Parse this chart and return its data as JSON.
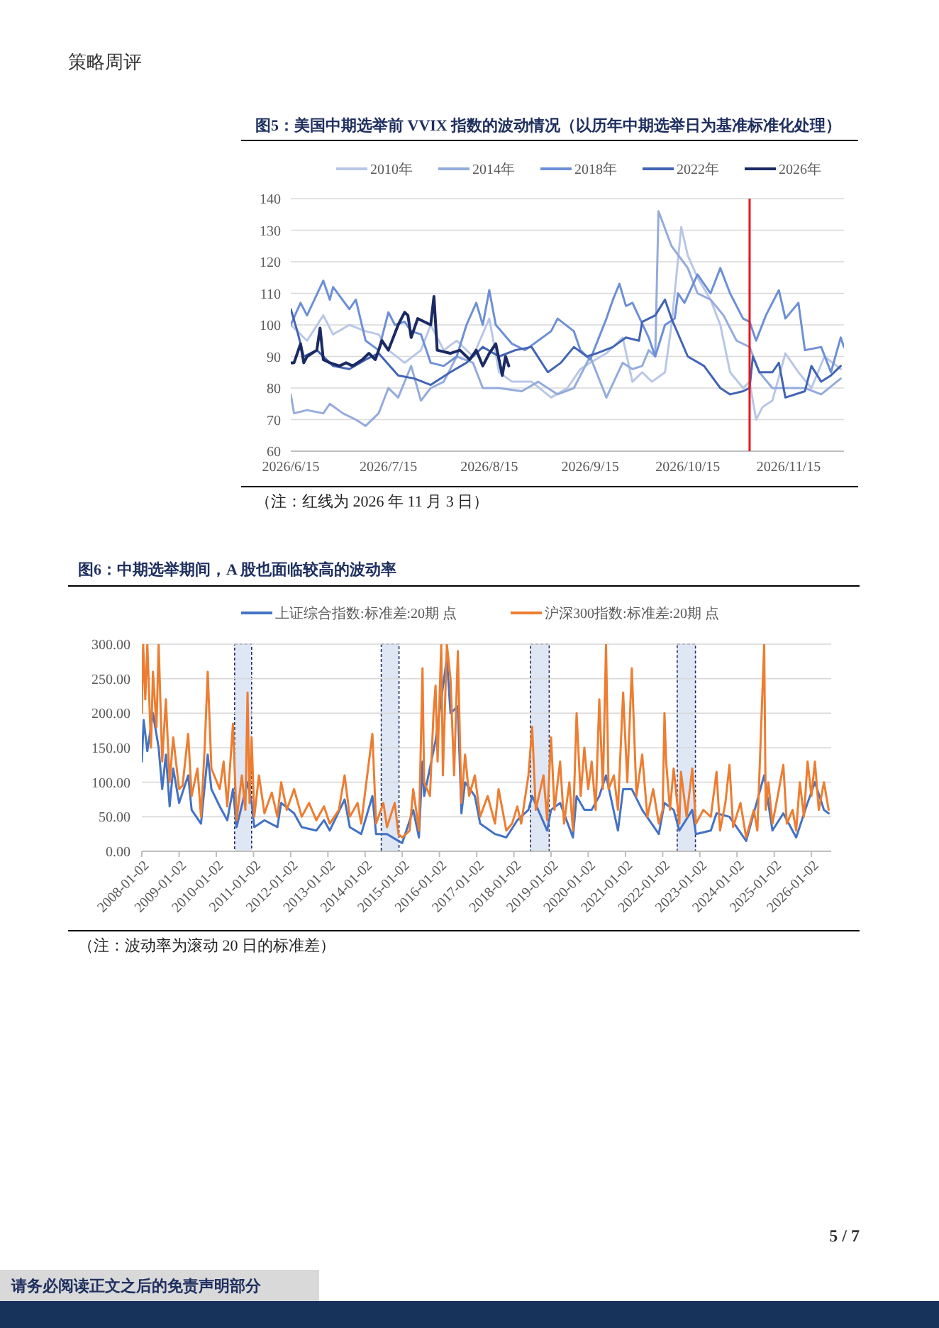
{
  "chart_data": [
    {
      "type": "line",
      "title": "图5：美国中期选举前 VVIX 指数的波动情况（以历年中期选举日为基准标准化处理）",
      "legend": "top",
      "grid": "y",
      "xlim": [
        "2026-06-15",
        "2026-12-02"
      ],
      "ylim": [
        60,
        140
      ],
      "xticks": [
        {
          "value": "2026-06-15",
          "label": "2026/6/15"
        },
        {
          "value": "2026-07-15",
          "label": "2026/7/15"
        },
        {
          "value": "2026-08-15",
          "label": "2026/8/15"
        },
        {
          "value": "2026-09-15",
          "label": "2026/9/15"
        },
        {
          "value": "2026-10-15",
          "label": "2026/10/15"
        },
        {
          "value": "2026-11-15",
          "label": "2026/11/15"
        }
      ],
      "yticks": [
        60,
        70,
        80,
        90,
        100,
        110,
        120,
        130,
        140
      ],
      "ref_lines": [
        {
          "axis": "x",
          "value": "2026-11-03",
          "color": "#e8141b"
        }
      ],
      "annotations": [
        "（注：红线为 2026 年 11 月 3 日）"
      ],
      "series": [
        {
          "name": "2010年",
          "color": "#b9c7e6",
          "x": [
            "2026-06-15",
            "2026-06-20",
            "2026-06-25",
            "2026-06-28",
            "2026-07-03",
            "2026-07-08",
            "2026-07-12",
            "2026-07-15",
            "2026-07-20",
            "2026-07-25",
            "2026-07-28",
            "2026-08-01",
            "2026-08-05",
            "2026-08-10",
            "2026-08-15",
            "2026-08-18",
            "2026-08-22",
            "2026-08-28",
            "2026-09-03",
            "2026-09-08",
            "2026-09-12",
            "2026-09-15",
            "2026-09-20",
            "2026-09-25",
            "2026-09-28",
            "2026-10-01",
            "2026-10-04",
            "2026-10-08",
            "2026-10-10",
            "2026-10-13",
            "2026-10-15",
            "2026-10-18",
            "2026-10-22",
            "2026-10-25",
            "2026-10-28",
            "2026-11-01",
            "2026-11-03",
            "2026-11-05",
            "2026-11-07",
            "2026-11-10",
            "2026-11-14",
            "2026-11-18",
            "2026-11-22",
            "2026-11-26",
            "2026-12-01"
          ],
          "values": [
            100,
            95,
            103,
            97,
            100,
            98,
            97,
            92,
            88,
            92,
            100,
            92,
            95,
            90,
            102,
            85,
            82,
            82,
            77,
            80,
            86,
            88,
            91,
            96,
            82,
            85,
            82,
            85,
            100,
            131,
            122,
            115,
            108,
            100,
            85,
            80,
            82,
            70,
            74,
            76,
            91,
            85,
            80,
            90,
            86
          ]
        },
        {
          "name": "2014年",
          "color": "#94abdc",
          "x": [
            "2026-06-15",
            "2026-06-16",
            "2026-06-20",
            "2026-06-25",
            "2026-06-27",
            "2026-07-01",
            "2026-07-05",
            "2026-07-08",
            "2026-07-12",
            "2026-07-15",
            "2026-07-18",
            "2026-07-22",
            "2026-07-25",
            "2026-07-28",
            "2026-08-01",
            "2026-08-05",
            "2026-08-10",
            "2026-08-13",
            "2026-08-18",
            "2026-08-25",
            "2026-08-30",
            "2026-09-05",
            "2026-09-10",
            "2026-09-15",
            "2026-09-20",
            "2026-09-25",
            "2026-09-28",
            "2026-10-01",
            "2026-10-03",
            "2026-10-05",
            "2026-10-06",
            "2026-10-10",
            "2026-10-15",
            "2026-10-18",
            "2026-10-22",
            "2026-10-26",
            "2026-10-30",
            "2026-11-03",
            "2026-11-06",
            "2026-11-10",
            "2026-11-20",
            "2026-11-25",
            "2026-12-01"
          ],
          "values": [
            78,
            72,
            73,
            72,
            75,
            72,
            70,
            68,
            72,
            80,
            77,
            87,
            76,
            80,
            82,
            90,
            88,
            80,
            80,
            79,
            82,
            78,
            80,
            90,
            77,
            88,
            86,
            87,
            92,
            90,
            136,
            125,
            118,
            110,
            108,
            103,
            95,
            93,
            85,
            80,
            80,
            78,
            83
          ]
        },
        {
          "name": "2018年",
          "color": "#6d8fd6",
          "x": [
            "2026-06-15",
            "2026-06-18",
            "2026-06-20",
            "2026-06-25",
            "2026-06-27",
            "2026-06-28",
            "2026-07-03",
            "2026-07-05",
            "2026-07-08",
            "2026-07-12",
            "2026-07-15",
            "2026-07-17",
            "2026-07-20",
            "2026-07-22",
            "2026-07-25",
            "2026-07-28",
            "2026-08-01",
            "2026-08-05",
            "2026-08-08",
            "2026-08-11",
            "2026-08-13",
            "2026-08-15",
            "2026-08-17",
            "2026-08-22",
            "2026-08-26",
            "2026-08-30",
            "2026-09-03",
            "2026-09-05",
            "2026-09-10",
            "2026-09-12",
            "2026-09-15",
            "2026-09-20",
            "2026-09-22",
            "2026-09-24",
            "2026-09-26",
            "2026-09-28",
            "2026-10-03",
            "2026-10-05",
            "2026-10-08",
            "2026-10-11",
            "2026-10-12",
            "2026-10-14",
            "2026-10-18",
            "2026-10-22",
            "2026-10-25",
            "2026-10-28",
            "2026-11-01",
            "2026-11-03",
            "2026-11-05",
            "2026-11-08",
            "2026-11-12",
            "2026-11-14",
            "2026-11-18",
            "2026-11-20",
            "2026-11-25",
            "2026-11-28",
            "2026-12-01",
            "2026-12-02"
          ],
          "values": [
            100,
            107,
            103,
            114,
            108,
            112,
            105,
            108,
            95,
            92,
            104,
            100,
            101,
            98,
            97,
            88,
            87,
            90,
            100,
            107,
            100,
            111,
            100,
            94,
            92,
            95,
            98,
            102,
            98,
            92,
            89,
            102,
            108,
            113,
            106,
            107,
            96,
            90,
            100,
            102,
            110,
            107,
            116,
            110,
            118,
            110,
            102,
            101,
            95,
            103,
            111,
            102,
            107,
            92,
            93,
            85,
            96,
            93
          ]
        },
        {
          "name": "2022年",
          "color": "#4264b4",
          "x": [
            "2026-06-15",
            "2026-06-17",
            "2026-06-19",
            "2026-06-23",
            "2026-06-28",
            "2026-07-03",
            "2026-07-08",
            "2026-07-12",
            "2026-07-18",
            "2026-07-23",
            "2026-07-28",
            "2026-08-03",
            "2026-08-08",
            "2026-08-13",
            "2026-08-18",
            "2026-08-23",
            "2026-08-28",
            "2026-09-02",
            "2026-09-06",
            "2026-09-10",
            "2026-09-14",
            "2026-09-17",
            "2026-09-22",
            "2026-09-26",
            "2026-09-30",
            "2026-10-01",
            "2026-10-05",
            "2026-10-08",
            "2026-10-10",
            "2026-10-15",
            "2026-10-20",
            "2026-10-25",
            "2026-10-28",
            "2026-11-01",
            "2026-11-03",
            "2026-11-04",
            "2026-11-06",
            "2026-11-10",
            "2026-11-12",
            "2026-11-14",
            "2026-11-20",
            "2026-11-22",
            "2026-11-25",
            "2026-11-28",
            "2026-12-01"
          ],
          "values": [
            105,
            98,
            90,
            92,
            87,
            86,
            89,
            91,
            84,
            83,
            81,
            85,
            88,
            93,
            90,
            92,
            93,
            85,
            88,
            93,
            90,
            91,
            93,
            96,
            95,
            101,
            103,
            108,
            102,
            90,
            87,
            80,
            78,
            79,
            80,
            90,
            85,
            85,
            88,
            77,
            79,
            87,
            82,
            84,
            87
          ]
        },
        {
          "name": "2026年",
          "color": "#1b2a63",
          "x": [
            "2026-06-15",
            "2026-06-16",
            "2026-06-18",
            "2026-06-19",
            "2026-06-20",
            "2026-06-23",
            "2026-06-24",
            "2026-06-25",
            "2026-06-27",
            "2026-06-30",
            "2026-07-02",
            "2026-07-04",
            "2026-07-07",
            "2026-07-09",
            "2026-07-11",
            "2026-07-13",
            "2026-07-15",
            "2026-07-18",
            "2026-07-20",
            "2026-07-21",
            "2026-07-22",
            "2026-07-24",
            "2026-07-26",
            "2026-07-28",
            "2026-07-29",
            "2026-07-30",
            "2026-08-03",
            "2026-08-06",
            "2026-08-09",
            "2026-08-11",
            "2026-08-13",
            "2026-08-15",
            "2026-08-17",
            "2026-08-19",
            "2026-08-20",
            "2026-08-21"
          ],
          "values": [
            88,
            88,
            94,
            88,
            90,
            92,
            99,
            89,
            88,
            87,
            88,
            87,
            89,
            91,
            89,
            95,
            92,
            100,
            104,
            103,
            96,
            102,
            101,
            100,
            109,
            92,
            91,
            92,
            89,
            92,
            87,
            91,
            94,
            84,
            90,
            87
          ]
        }
      ]
    },
    {
      "type": "line",
      "title": "图6：中期选举期间，A 股也面临较高的波动率",
      "legend": "top",
      "grid": "y",
      "xlim": [
        "2008-01-02",
        "2026-07-15"
      ],
      "ylim": [
        0,
        300
      ],
      "xticks": [
        {
          "value": "2008-01-02",
          "label": "2008-01-02"
        },
        {
          "value": "2009-01-02",
          "label": "2009-01-02"
        },
        {
          "value": "2010-01-02",
          "label": "2010-01-02"
        },
        {
          "value": "2011-01-02",
          "label": "2011-01-02"
        },
        {
          "value": "2012-01-02",
          "label": "2012-01-02"
        },
        {
          "value": "2013-01-02",
          "label": "2013-01-02"
        },
        {
          "value": "2014-01-02",
          "label": "2014-01-02"
        },
        {
          "value": "2015-01-02",
          "label": "2015-01-02"
        },
        {
          "value": "2016-01-02",
          "label": "2016-01-02"
        },
        {
          "value": "2017-01-02",
          "label": "2017-01-02"
        },
        {
          "value": "2018-01-02",
          "label": "2018-01-02"
        },
        {
          "value": "2019-01-02",
          "label": "2019-01-02"
        },
        {
          "value": "2020-01-02",
          "label": "2020-01-02"
        },
        {
          "value": "2021-01-02",
          "label": "2021-01-02"
        },
        {
          "value": "2022-01-02",
          "label": "2022-01-02"
        },
        {
          "value": "2023-01-02",
          "label": "2023-01-02"
        },
        {
          "value": "2024-01-02",
          "label": "2024-01-02"
        },
        {
          "value": "2025-01-02",
          "label": "2025-01-02"
        },
        {
          "value": "2026-01-02",
          "label": "2026-01-02"
        }
      ],
      "yticks": [
        {
          "value": 0,
          "label": "0.00"
        },
        {
          "value": 50,
          "label": "50.00"
        },
        {
          "value": 100,
          "label": "100.00"
        },
        {
          "value": 150,
          "label": "150.00"
        },
        {
          "value": 200,
          "label": "200.00"
        },
        {
          "value": 250,
          "label": "250.00"
        },
        {
          "value": 300,
          "label": "300.00"
        }
      ],
      "bands": [
        {
          "axis": "x",
          "from": "2010-07-01",
          "to": "2010-12-15",
          "color": "#dfe7f5"
        },
        {
          "axis": "x",
          "from": "2014-06-10",
          "to": "2014-12-01",
          "color": "#dfe7f5"
        },
        {
          "axis": "x",
          "from": "2018-06-15",
          "to": "2018-12-15",
          "color": "#dfe7f5"
        },
        {
          "axis": "x",
          "from": "2022-05-25",
          "to": "2022-11-20",
          "color": "#dfe7f5"
        }
      ],
      "annotations": [
        "（注：波动率为滚动 20 日的标准差）"
      ],
      "series": [
        {
          "name": "上证综合指数:标准差:20期 点",
          "color": "#4472c4",
          "x": [
            "2008-01-02",
            "2008-01-20",
            "2008-02-25",
            "2008-04-20",
            "2008-06-15",
            "2008-07-20",
            "2008-08-25",
            "2008-10-01",
            "2008-11-05",
            "2009-01-02",
            "2009-04-01",
            "2009-05-05",
            "2009-08-05",
            "2009-10-10",
            "2009-11-15",
            "2010-02-05",
            "2010-04-20",
            "2010-06-15",
            "2010-07-20",
            "2010-11-05",
            "2010-12-15",
            "2011-01-10",
            "2011-04-20",
            "2011-08-25",
            "2011-10-01",
            "2012-02-05",
            "2012-04-20",
            "2012-09-10",
            "2012-11-25",
            "2013-01-20",
            "2013-06-15",
            "2013-08-05",
            "2013-11-25",
            "2014-03-15",
            "2014-04-20",
            "2014-08-05",
            "2014-11-25",
            "2015-01-02",
            "2015-04-20",
            "2015-06-15",
            "2015-07-20",
            "2015-08-05",
            "2015-11-25",
            "2016-01-20",
            "2016-03-15",
            "2016-04-20",
            "2016-07-01",
            "2016-08-05",
            "2016-09-10",
            "2016-12-15",
            "2017-02-05",
            "2017-07-01",
            "2017-10-20",
            "2018-02-05",
            "2018-05-25",
            "2018-07-01",
            "2018-11-25",
            "2019-01-02",
            "2019-04-01",
            "2019-08-05",
            "2019-09-10",
            "2019-11-25",
            "2020-02-05",
            "2020-04-20",
            "2020-06-25",
            "2020-10-20",
            "2020-12-10",
            "2021-03-05",
            "2021-06-15",
            "2021-11-25",
            "2022-01-20",
            "2022-04-20",
            "2022-06-15",
            "2022-10-20",
            "2022-11-25",
            "2023-04-20",
            "2023-06-15",
            "2023-10-20",
            "2024-04-01",
            "2024-09-25",
            "2024-12-15",
            "2025-04-01",
            "2025-08-05",
            "2025-11-25",
            "2026-02-05",
            "2026-05-05",
            "2026-06-20"
          ],
          "values": [
            130,
            190,
            145,
            200,
            150,
            90,
            140,
            65,
            120,
            70,
            110,
            60,
            40,
            140,
            90,
            65,
            45,
            90,
            35,
            100,
            70,
            35,
            45,
            35,
            70,
            55,
            35,
            30,
            45,
            30,
            75,
            35,
            25,
            80,
            25,
            25,
            15,
            12,
            60,
            20,
            130,
            80,
            160,
            220,
            280,
            200,
            210,
            55,
            100,
            80,
            40,
            25,
            20,
            45,
            60,
            80,
            30,
            60,
            70,
            20,
            80,
            60,
            60,
            80,
            110,
            30,
            90,
            90,
            60,
            25,
            70,
            60,
            30,
            60,
            25,
            30,
            55,
            50,
            15,
            110,
            30,
            55,
            20,
            70,
            100,
            60,
            55
          ]
        },
        {
          "name": "沪深300指数:标准差:20期 点",
          "color": "#ed7d31",
          "x": [
            "2008-01-02",
            "2008-01-15",
            "2008-02-05",
            "2008-02-25",
            "2008-04-01",
            "2008-04-20",
            "2008-05-25",
            "2008-06-15",
            "2008-07-20",
            "2008-08-25",
            "2008-10-01",
            "2008-11-05",
            "2009-01-02",
            "2009-02-05",
            "2009-04-01",
            "2009-05-05",
            "2009-07-01",
            "2009-08-05",
            "2009-09-10",
            "2009-10-10",
            "2009-11-15",
            "2010-02-05",
            "2010-03-15",
            "2010-04-20",
            "2010-06-15",
            "2010-07-20",
            "2010-09-10",
            "2010-10-15",
            "2010-11-05",
            "2010-11-25",
            "2010-12-15",
            "2011-01-10",
            "2011-02-25",
            "2011-04-20",
            "2011-07-01",
            "2011-08-25",
            "2011-10-01",
            "2011-11-25",
            "2012-02-05",
            "2012-04-20",
            "2012-07-01",
            "2012-09-10",
            "2012-11-25",
            "2013-01-20",
            "2013-04-20",
            "2013-06-15",
            "2013-08-05",
            "2013-10-20",
            "2013-11-25",
            "2014-03-15",
            "2014-04-20",
            "2014-07-01",
            "2014-08-05",
            "2014-10-20",
            "2014-11-25",
            "2015-01-02",
            "2015-03-15",
            "2015-04-20",
            "2015-06-15",
            "2015-07-20",
            "2015-08-05",
            "2015-10-01",
            "2015-11-05",
            "2015-11-25",
            "2015-12-15",
            "2016-01-20",
            "2016-02-05",
            "2016-03-15",
            "2016-04-20",
            "2016-05-25",
            "2016-07-01",
            "2016-08-05",
            "2016-09-10",
            "2016-10-20",
            "2016-12-15",
            "2017-02-05",
            "2017-04-20",
            "2017-07-01",
            "2017-08-05",
            "2017-10-20",
            "2017-12-15",
            "2018-02-05",
            "2018-03-15",
            "2018-05-25",
            "2018-07-01",
            "2018-08-05",
            "2018-10-20",
            "2018-11-25",
            "2019-01-02",
            "2019-02-05",
            "2019-04-01",
            "2019-05-10",
            "2019-07-01",
            "2019-08-05",
            "2019-09-10",
            "2019-10-20",
            "2019-11-25",
            "2020-01-02",
            "2020-02-05",
            "2020-03-15",
            "2020-04-20",
            "2020-05-25",
            "2020-06-25",
            "2020-07-20",
            "2020-09-10",
            "2020-10-20",
            "2020-12-10",
            "2021-01-20",
            "2021-03-05",
            "2021-04-20",
            "2021-06-15",
            "2021-08-05",
            "2021-10-01",
            "2021-11-25",
            "2022-01-02",
            "2022-01-20",
            "2022-02-05",
            "2022-03-15",
            "2022-04-20",
            "2022-06-15",
            "2022-07-01",
            "2022-08-25",
            "2022-10-20",
            "2022-11-25",
            "2023-02-05",
            "2023-04-20",
            "2023-06-15",
            "2023-07-20",
            "2023-09-10",
            "2023-10-20",
            "2023-11-25",
            "2024-02-05",
            "2024-04-01",
            "2024-06-15",
            "2024-07-20",
            "2024-09-25",
            "2024-10-10",
            "2024-11-05",
            "2024-12-15",
            "2025-02-05",
            "2025-04-01",
            "2025-05-05",
            "2025-07-01",
            "2025-08-05",
            "2025-09-10",
            "2025-10-20",
            "2025-11-25",
            "2026-01-02",
            "2026-02-05",
            "2026-03-15",
            "2026-05-05",
            "2026-06-20"
          ],
          "values": [
            200,
            300,
            220,
            300,
            150,
            260,
            180,
            300,
            130,
            220,
            100,
            165,
            90,
            95,
            170,
            80,
            120,
            50,
            150,
            260,
            120,
            90,
            130,
            65,
            185,
            45,
            110,
            60,
            230,
            70,
            165,
            50,
            110,
            55,
            85,
            50,
            100,
            60,
            90,
            50,
            70,
            45,
            65,
            40,
            60,
            110,
            50,
            70,
            40,
            170,
            40,
            70,
            35,
            70,
            25,
            20,
            30,
            90,
            30,
            265,
            100,
            80,
            200,
            240,
            130,
            300,
            110,
            300,
            250,
            110,
            290,
            70,
            140,
            80,
            110,
            50,
            80,
            40,
            90,
            30,
            40,
            65,
            40,
            110,
            180,
            60,
            110,
            45,
            165,
            60,
            130,
            40,
            100,
            30,
            200,
            80,
            150,
            90,
            130,
            60,
            220,
            90,
            300,
            90,
            110,
            60,
            230,
            100,
            265,
            80,
            140,
            50,
            90,
            40,
            60,
            200,
            130,
            60,
            120,
            40,
            115,
            50,
            120,
            40,
            60,
            50,
            115,
            30,
            70,
            125,
            35,
            70,
            20,
            60,
            30,
            300,
            60,
            100,
            40,
            80,
            125,
            40,
            60,
            30,
            100,
            50,
            130,
            80,
            130,
            60,
            100,
            60
          ]
        }
      ]
    },
    {
      "type": "other",
      "annotations": [
        "策略周评",
        "5 / 7",
        "请务必阅读正文之后的免责声明部分"
      ]
    }
  ]
}
